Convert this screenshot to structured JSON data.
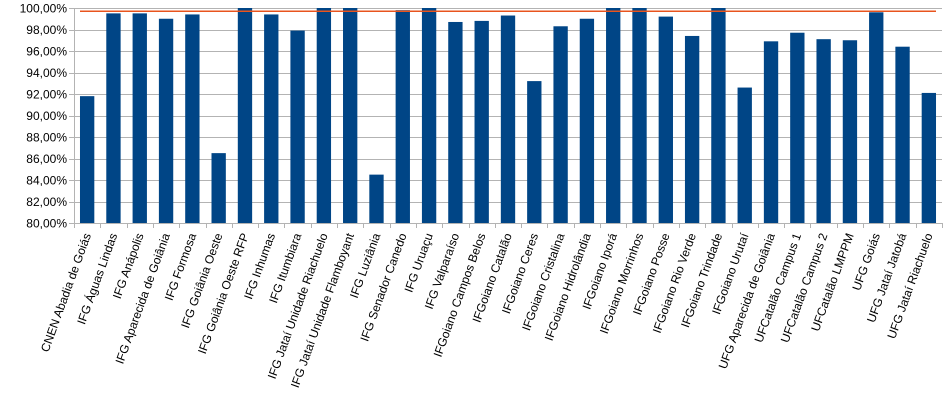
{
  "chart_data": {
    "type": "bar",
    "title": "",
    "xlabel": "",
    "ylabel": "",
    "ylim": [
      80,
      100
    ],
    "y_tick_step": 2,
    "y_tick_labels": [
      "80,00%",
      "82,00%",
      "84,00%",
      "86,00%",
      "88,00%",
      "90,00%",
      "92,00%",
      "94,00%",
      "96,00%",
      "98,00%",
      "100,00%"
    ],
    "grid": "horizontal",
    "legend": "none",
    "reference_line": {
      "value": 99.7
    },
    "categories": [
      "CNEN Abadia de Goiás",
      "IFG Águas Lindas",
      "IFG Anápolis",
      "IFG Aparecida de Goiânia",
      "IFG Formosa",
      "IFG Goiânia Oeste",
      "IFG Goiânia Oeste RFP",
      "IFG Inhumas",
      "IFG Itumbiara",
      "IFG Jataí Unidade Riachuelo",
      "IFG Jataí Unidade Flamboyant",
      "IFG Luziânia",
      "IFG Senador Canedo",
      "IFG Uruaçu",
      "IFG Valparaíso",
      "IFGoiano Campos Belos",
      "IFGoiano Catalão",
      "IFGoiano Ceres",
      "IFGoiano Cristalina",
      "IFGoiano Hidrolândia",
      "IFGoiano Iporá",
      "IFGoiano Morrinhos",
      "IFGoiano Posse",
      "IFGoiano Rio Verde",
      "IFGoiano Trindade",
      "IFGoiano Urutaí",
      "UFG Aparecida de Goiânia",
      "UFCatalão Campus 1",
      "UFCatalão Campus 2",
      "UFCatalão LMPPM",
      "UFG Goiás",
      "UFG Jataí Jatobá",
      "UFG Jataí Riachuelo"
    ],
    "values": [
      91.8,
      99.5,
      99.5,
      99.0,
      99.4,
      86.5,
      100.0,
      99.4,
      97.9,
      100.0,
      100.0,
      84.5,
      99.8,
      100.0,
      98.7,
      98.8,
      99.3,
      93.2,
      98.3,
      99.0,
      100.0,
      100.0,
      99.2,
      97.4,
      100.0,
      92.6,
      96.9,
      97.7,
      97.1,
      97.0,
      99.6,
      96.4,
      92.1
    ],
    "colors": {
      "bar": "#004586",
      "reference_line": "#e8541e",
      "grid": "#b3b3b3",
      "axis": "#b3b3b3"
    }
  }
}
